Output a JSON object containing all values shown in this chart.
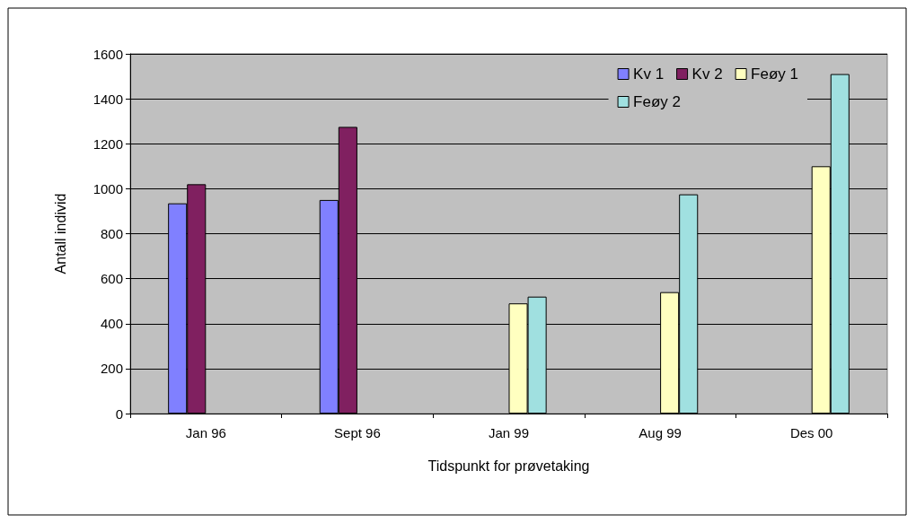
{
  "chart_data": {
    "type": "bar",
    "xlabel": "Tidspunkt for prøvetaking",
    "ylabel": "Antall individ",
    "categories": [
      "Jan 96",
      "Sept 96",
      "Jan 99",
      "Aug 99",
      "Des 00"
    ],
    "series": [
      {
        "name": "Kv 1",
        "color": "#8080ff",
        "values": [
          935,
          950,
          null,
          null,
          null
        ]
      },
      {
        "name": "Kv 2",
        "color": "#802060",
        "values": [
          1020,
          1275,
          null,
          null,
          null
        ]
      },
      {
        "name": "Feøy 1",
        "color": "#ffffc0",
        "values": [
          null,
          null,
          490,
          540,
          1100
        ]
      },
      {
        "name": "Feøy 2",
        "color": "#a0e0e0",
        "values": [
          null,
          null,
          520,
          975,
          1510
        ]
      }
    ],
    "ylim": [
      0,
      1600
    ],
    "yticks": [
      0,
      200,
      400,
      600,
      800,
      1000,
      1200,
      1400,
      1600
    ],
    "grid": "y",
    "legend": "top right"
  }
}
